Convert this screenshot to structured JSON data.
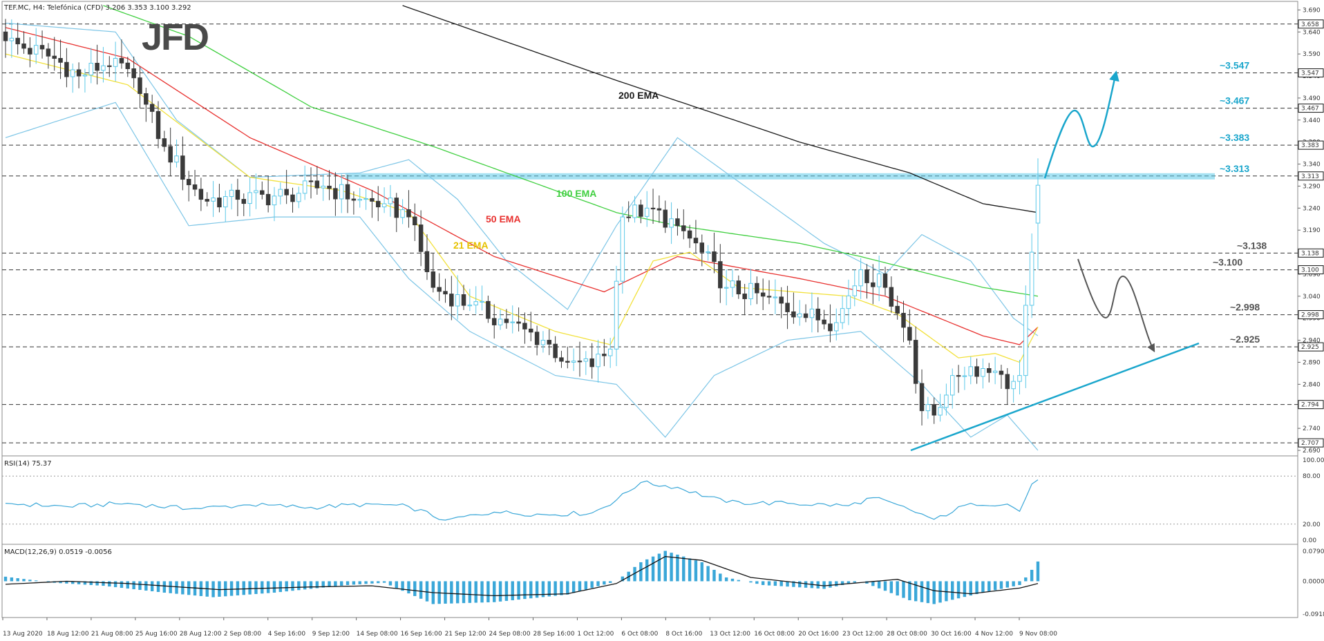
{
  "header": {
    "main": "TEF.MC, H4: Telefónica (CFD)  3.206 3.353 3.100 3.292",
    "rsi": "RSI(14) 75.37",
    "macd": "MACD(12,26,9) 0.0519 -0.0056"
  },
  "logo": "JFD",
  "colors": {
    "bull": "#5bc8e8",
    "bear": "#3a3a3a",
    "ema21": "#f2e13a",
    "ema50": "#e8312f",
    "ema100": "#3fcf3f",
    "ema200": "#1a1a1a",
    "bands": "#7cc5e6",
    "accent": "#1aa6cc",
    "gray": "#555555"
  },
  "ema_labels": {
    "ema200": "200 EMA",
    "ema100": "100 EMA",
    "ema50": "50 EMA",
    "ema21": "21 EMA"
  },
  "price_axis": {
    "ticks": [
      "3.690",
      "3.640",
      "3.590",
      "3.540",
      "3.490",
      "3.440",
      "3.390",
      "3.340",
      "3.290",
      "3.240",
      "3.190",
      "3.140",
      "3.090",
      "3.040",
      "2.990",
      "2.940",
      "2.890",
      "2.840",
      "2.790",
      "2.740",
      "2.690"
    ],
    "level_boxes": [
      "3.658",
      "3.547",
      "3.467",
      "3.383",
      "3.313",
      "3.138",
      "3.100",
      "2.998",
      "2.925",
      "2.794",
      "2.707"
    ]
  },
  "levels": [
    {
      "label": "~3.547",
      "value": 3.547,
      "color": "#1aa6cc"
    },
    {
      "label": "~3.467",
      "value": 3.467,
      "color": "#1aa6cc"
    },
    {
      "label": "~3.383",
      "value": 3.383,
      "color": "#1aa6cc"
    },
    {
      "label": "~3.313",
      "value": 3.313,
      "color": "#1aa6cc"
    },
    {
      "label": "~3.138",
      "value": 3.138,
      "color": "#555555"
    },
    {
      "label": "~3.100",
      "value": 3.1,
      "color": "#555555"
    },
    {
      "label": "~2.998",
      "value": 2.998,
      "color": "#555555"
    },
    {
      "label": "~2.925",
      "value": 2.925,
      "color": "#555555"
    }
  ],
  "rsi_axis": [
    "100.00",
    "80.00",
    "20.00",
    "0.00"
  ],
  "macd_axis": [
    "0.0790",
    "0.0000",
    "-0.0918"
  ],
  "x_labels": [
    "13 Aug 2020",
    "18 Aug 12:00",
    "21 Aug 08:00",
    "25 Aug 16:00",
    "28 Aug 12:00",
    "2 Sep 08:00",
    "4 Sep 16:00",
    "9 Sep 12:00",
    "14 Sep 08:00",
    "16 Sep 16:00",
    "21 Sep 12:00",
    "24 Sep 08:00",
    "28 Sep 16:00",
    "1 Oct 12:00",
    "6 Oct 08:00",
    "8 Oct 16:00",
    "13 Oct 12:00",
    "16 Oct 08:00",
    "20 Oct 16:00",
    "23 Oct 12:00",
    "28 Oct 08:00",
    "30 Oct 16:00",
    "4 Nov 12:00",
    "9 Nov 08:00"
  ],
  "chart_data": {
    "type": "candlestick",
    "symbol": "TEF.MC",
    "timeframe": "H4",
    "ylim": [
      2.69,
      3.7
    ],
    "close_anchors": [
      [
        0,
        3.62
      ],
      [
        8,
        3.58
      ],
      [
        12,
        3.54
      ],
      [
        18,
        3.58
      ],
      [
        22,
        3.5
      ],
      [
        26,
        3.38
      ],
      [
        32,
        3.26
      ],
      [
        38,
        3.26
      ],
      [
        46,
        3.27
      ],
      [
        52,
        3.29
      ],
      [
        58,
        3.26
      ],
      [
        62,
        3.25
      ],
      [
        66,
        3.22
      ],
      [
        70,
        3.06
      ],
      [
        76,
        3.02
      ],
      [
        82,
        2.98
      ],
      [
        88,
        2.94
      ],
      [
        92,
        2.89
      ],
      [
        96,
        2.88
      ],
      [
        99,
        2.92
      ],
      [
        101,
        3.22
      ],
      [
        105,
        3.24
      ],
      [
        110,
        3.2
      ],
      [
        114,
        3.14
      ],
      [
        118,
        3.06
      ],
      [
        124,
        3.04
      ],
      [
        130,
        3.0
      ],
      [
        136,
        2.98
      ],
      [
        140,
        3.1
      ],
      [
        144,
        3.06
      ],
      [
        148,
        2.94
      ],
      [
        150,
        2.78
      ],
      [
        152,
        2.77
      ],
      [
        155,
        2.86
      ],
      [
        158,
        2.88
      ],
      [
        162,
        2.87
      ],
      [
        164,
        2.83
      ],
      [
        166,
        2.86
      ],
      [
        168,
        3.14
      ],
      [
        169,
        3.292
      ]
    ],
    "ema21_anchors": [
      [
        0,
        3.59
      ],
      [
        20,
        3.52
      ],
      [
        40,
        3.31
      ],
      [
        55,
        3.28
      ],
      [
        66,
        3.23
      ],
      [
        76,
        3.04
      ],
      [
        90,
        2.96
      ],
      [
        99,
        2.93
      ],
      [
        106,
        3.12
      ],
      [
        112,
        3.14
      ],
      [
        120,
        3.06
      ],
      [
        138,
        3.04
      ],
      [
        146,
        3.0
      ],
      [
        156,
        2.9
      ],
      [
        162,
        2.91
      ],
      [
        166,
        2.89
      ],
      [
        169,
        2.97
      ]
    ],
    "ema50_anchors": [
      [
        0,
        3.65
      ],
      [
        20,
        3.58
      ],
      [
        40,
        3.4
      ],
      [
        60,
        3.28
      ],
      [
        80,
        3.13
      ],
      [
        98,
        3.05
      ],
      [
        110,
        3.13
      ],
      [
        130,
        3.08
      ],
      [
        144,
        3.04
      ],
      [
        160,
        2.95
      ],
      [
        166,
        2.93
      ],
      [
        169,
        2.97
      ]
    ],
    "ema100_anchors": [
      [
        16,
        3.7
      ],
      [
        30,
        3.63
      ],
      [
        50,
        3.47
      ],
      [
        70,
        3.38
      ],
      [
        90,
        3.28
      ],
      [
        100,
        3.23
      ],
      [
        110,
        3.2
      ],
      [
        130,
        3.16
      ],
      [
        140,
        3.13
      ],
      [
        160,
        3.06
      ],
      [
        169,
        3.04
      ]
    ],
    "ema200_anchors": [
      [
        65,
        3.7
      ],
      [
        100,
        3.53
      ],
      [
        130,
        3.39
      ],
      [
        148,
        3.32
      ],
      [
        160,
        3.25
      ],
      [
        169,
        3.23
      ]
    ],
    "bands_upper_anchors": [
      [
        0,
        3.66
      ],
      [
        18,
        3.64
      ],
      [
        28,
        3.44
      ],
      [
        40,
        3.31
      ],
      [
        58,
        3.32
      ],
      [
        66,
        3.35
      ],
      [
        74,
        3.26
      ],
      [
        82,
        3.12
      ],
      [
        92,
        3.01
      ],
      [
        100,
        3.2
      ],
      [
        110,
        3.4
      ],
      [
        122,
        3.28
      ],
      [
        134,
        3.16
      ],
      [
        144,
        3.09
      ],
      [
        150,
        3.18
      ],
      [
        158,
        3.12
      ],
      [
        165,
        2.99
      ],
      [
        169,
        2.95
      ]
    ],
    "bands_lower_anchors": [
      [
        0,
        3.4
      ],
      [
        18,
        3.48
      ],
      [
        30,
        3.2
      ],
      [
        44,
        3.22
      ],
      [
        58,
        3.22
      ],
      [
        66,
        3.08
      ],
      [
        76,
        2.96
      ],
      [
        90,
        2.86
      ],
      [
        100,
        2.84
      ],
      [
        108,
        2.72
      ],
      [
        116,
        2.86
      ],
      [
        128,
        2.94
      ],
      [
        140,
        2.96
      ],
      [
        150,
        2.84
      ],
      [
        158,
        2.72
      ],
      [
        164,
        2.77
      ],
      [
        169,
        2.69
      ]
    ],
    "rsi_value": 75.37,
    "rsi_anchors": [
      [
        0,
        46
      ],
      [
        10,
        42
      ],
      [
        20,
        46
      ],
      [
        30,
        39
      ],
      [
        40,
        44
      ],
      [
        50,
        41
      ],
      [
        60,
        45
      ],
      [
        66,
        42
      ],
      [
        72,
        25
      ],
      [
        80,
        35
      ],
      [
        88,
        32
      ],
      [
        96,
        34
      ],
      [
        100,
        50
      ],
      [
        104,
        72
      ],
      [
        110,
        66
      ],
      [
        118,
        47
      ],
      [
        128,
        46
      ],
      [
        138,
        43
      ],
      [
        142,
        53
      ],
      [
        148,
        38
      ],
      [
        152,
        26
      ],
      [
        158,
        46
      ],
      [
        164,
        45
      ],
      [
        166,
        36
      ],
      [
        168,
        70
      ],
      [
        169,
        75.37
      ]
    ],
    "macd_signal_anchors": [
      [
        0,
        -0.008
      ],
      [
        10,
        0.0
      ],
      [
        20,
        -0.006
      ],
      [
        35,
        -0.022
      ],
      [
        50,
        -0.015
      ],
      [
        60,
        -0.012
      ],
      [
        70,
        -0.03
      ],
      [
        80,
        -0.038
      ],
      [
        92,
        -0.033
      ],
      [
        100,
        -0.006
      ],
      [
        108,
        0.065
      ],
      [
        114,
        0.055
      ],
      [
        122,
        0.01
      ],
      [
        134,
        -0.012
      ],
      [
        146,
        0.005
      ],
      [
        152,
        -0.025
      ],
      [
        158,
        -0.033
      ],
      [
        166,
        -0.018
      ],
      [
        169,
        -0.006
      ]
    ],
    "macd_hist_anchors": [
      [
        0,
        0.012
      ],
      [
        8,
        -0.004
      ],
      [
        16,
        -0.012
      ],
      [
        26,
        -0.03
      ],
      [
        34,
        -0.042
      ],
      [
        44,
        -0.03
      ],
      [
        56,
        -0.01
      ],
      [
        62,
        -0.004
      ],
      [
        70,
        -0.06
      ],
      [
        80,
        -0.055
      ],
      [
        92,
        -0.035
      ],
      [
        100,
        0.0
      ],
      [
        104,
        0.05
      ],
      [
        108,
        0.08
      ],
      [
        114,
        0.05
      ],
      [
        118,
        0.01
      ],
      [
        124,
        -0.01
      ],
      [
        134,
        -0.02
      ],
      [
        140,
        0.0
      ],
      [
        148,
        -0.05
      ],
      [
        152,
        -0.06
      ],
      [
        160,
        -0.03
      ],
      [
        166,
        -0.01
      ],
      [
        168,
        0.03
      ],
      [
        169,
        0.0519
      ]
    ]
  }
}
